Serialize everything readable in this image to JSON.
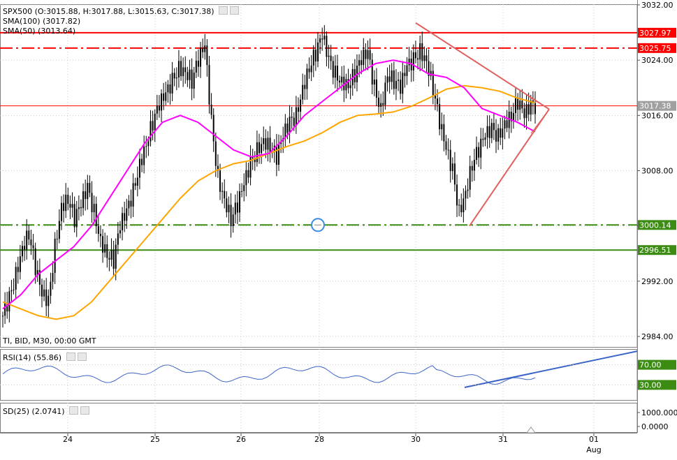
{
  "chart_data": {
    "type": "line",
    "symbol_info": "SPX500 (O:3015.88, H:3017.88, L:3015.63, C:3017.38)",
    "sma100_label": "SMA(100) (3017.82)",
    "sma50_label": "SMA(50) (3013.64)",
    "footer_info": "TI, BID, M30, 00:00 GMT",
    "x_ticks": [
      "24",
      "25",
      "26",
      "28",
      "30",
      "31",
      "01"
    ],
    "x_month": "Aug",
    "y_ticks": [
      "3032.00",
      "3024.00",
      "3016.00",
      "3008.00",
      "3000.00",
      "2992.00",
      "2984.00"
    ],
    "ylim": [
      2983,
      3032.5
    ],
    "price_tags": [
      {
        "label": "3027.97",
        "value": 3027.97,
        "color": "#ff0000"
      },
      {
        "label": "3025.75",
        "value": 3025.75,
        "color": "#ff0000"
      },
      {
        "label": "3017.38",
        "value": 3017.38,
        "color": "#a0a0a0"
      },
      {
        "label": "3000.14",
        "value": 3000.14,
        "color": "#3c8c14"
      },
      {
        "label": "2996.51",
        "value": 2996.51,
        "color": "#3c8c14"
      }
    ],
    "horizontal_lines": [
      {
        "value": 3027.97,
        "style": "solid",
        "color": "#ff0000"
      },
      {
        "value": 3025.75,
        "style": "dashdot",
        "color": "#ff0000"
      },
      {
        "value": 3017.38,
        "style": "solid-thin",
        "color": "#ff0000"
      },
      {
        "value": 3000.14,
        "style": "dashdot",
        "color": "#3c8c14"
      },
      {
        "value": 2996.51,
        "style": "solid",
        "color": "#3c8c14"
      }
    ],
    "close_prices": [
      2987.0,
      2989.5,
      2993.0,
      2997.0,
      2999.0,
      2994.0,
      2990.0,
      2989.0,
      2997.0,
      3003.0,
      3004.0,
      3001.0,
      3003.0,
      3005.5,
      3002.0,
      2998.0,
      2996.0,
      2995.0,
      3000.0,
      3002.0,
      3005.0,
      3009.0,
      3012.0,
      3015.0,
      3017.5,
      3019.0,
      3021.0,
      3023.0,
      3022.5,
      3021.0,
      3024.0,
      3026.0,
      3015.0,
      3007.0,
      3004.0,
      3001.0,
      3003.0,
      3006.0,
      3009.0,
      3011.0,
      3012.5,
      3011.5,
      3010.0,
      3013.0,
      3015.0,
      3016.0,
      3020.0,
      3023.0,
      3025.0,
      3027.5,
      3024.0,
      3022.0,
      3021.0,
      3020.5,
      3022.0,
      3024.0,
      3025.0,
      3020.0,
      3017.0,
      3022.0,
      3021.0,
      3020.0,
      3023.0,
      3024.0,
      3025.5,
      3024.0,
      3020.0,
      3015.0,
      3011.0,
      3008.0,
      3002.0,
      3005.0,
      3009.0,
      3011.0,
      3013.0,
      3014.0,
      3013.0,
      3015.0,
      3016.0,
      3018.0,
      3016.0,
      3017.38
    ],
    "series": [
      {
        "name": "SMA(100)",
        "color": "#ffa500",
        "values": [
          2989,
          2988,
          2987,
          2986.5,
          2987,
          2989,
          2992,
          2995,
          2998,
          3001,
          3004,
          3006.5,
          3008,
          3009,
          3009.5,
          3010.5,
          3011.5,
          3012.3,
          3013.5,
          3015,
          3016,
          3016.2,
          3016.5,
          3017.3,
          3018.5,
          3019.8,
          3020.3,
          3020.0,
          3019.5,
          3018.5,
          3017.82
        ]
      },
      {
        "name": "SMA(50)",
        "color": "#ff00ff",
        "values": [
          2988,
          2990,
          2993,
          2995,
          2997,
          3000,
          3004,
          3008,
          3012,
          3015,
          3016,
          3015,
          3013,
          3011,
          3010,
          3010.5,
          3013,
          3016,
          3018,
          3020,
          3022,
          3023.5,
          3024,
          3023.5,
          3022,
          3021.5,
          3020,
          3017,
          3016,
          3015,
          3013.64
        ]
      }
    ]
  },
  "rsi": {
    "label": "RSI(14) (55.86)",
    "tags": [
      "70.00",
      "30.00"
    ],
    "range": [
      0,
      100
    ]
  },
  "sd": {
    "label": "SD(25) (2.0741)",
    "tags": [
      "1000.000",
      "0.0000"
    ]
  },
  "colors": {
    "candle": "#000000",
    "grid": "#c8c8c8",
    "trend": "#e06060",
    "rsi_trend": "#3c64c8",
    "circle": "#3c8ce6"
  }
}
